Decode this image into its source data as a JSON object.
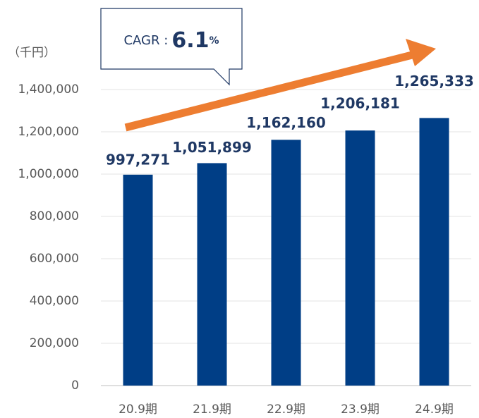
{
  "chart_data": {
    "type": "bar",
    "unit_label": "（千円）",
    "annotation": {
      "prefix": "CAGR :",
      "value": "6.1",
      "suffix": "%"
    },
    "categories": [
      "20.9期",
      "21.9期",
      "22.9期",
      "23.9期",
      "24.9期"
    ],
    "values": [
      997271,
      1051899,
      1162160,
      1206181,
      1265333
    ],
    "value_labels": [
      "997,271",
      "1,051,899",
      "1,162,160",
      "1,206,181",
      "1,265,333"
    ],
    "color": "#003e86",
    "ylim": [
      0,
      1400000
    ],
    "yticks": [
      0,
      {
        "value": 200000,
        "label": "200,000"
      },
      {
        "value": 400000,
        "label": "400,000"
      },
      {
        "value": 600000,
        "label": "600,000"
      },
      {
        "value": 800000,
        "label": "800,000"
      },
      {
        "value": 1000000,
        "label": "1,000,000"
      },
      {
        "value": 1200000,
        "label": "1,200,000"
      },
      {
        "value": 1400000,
        "label": "1,400,000"
      }
    ],
    "grid": true
  }
}
